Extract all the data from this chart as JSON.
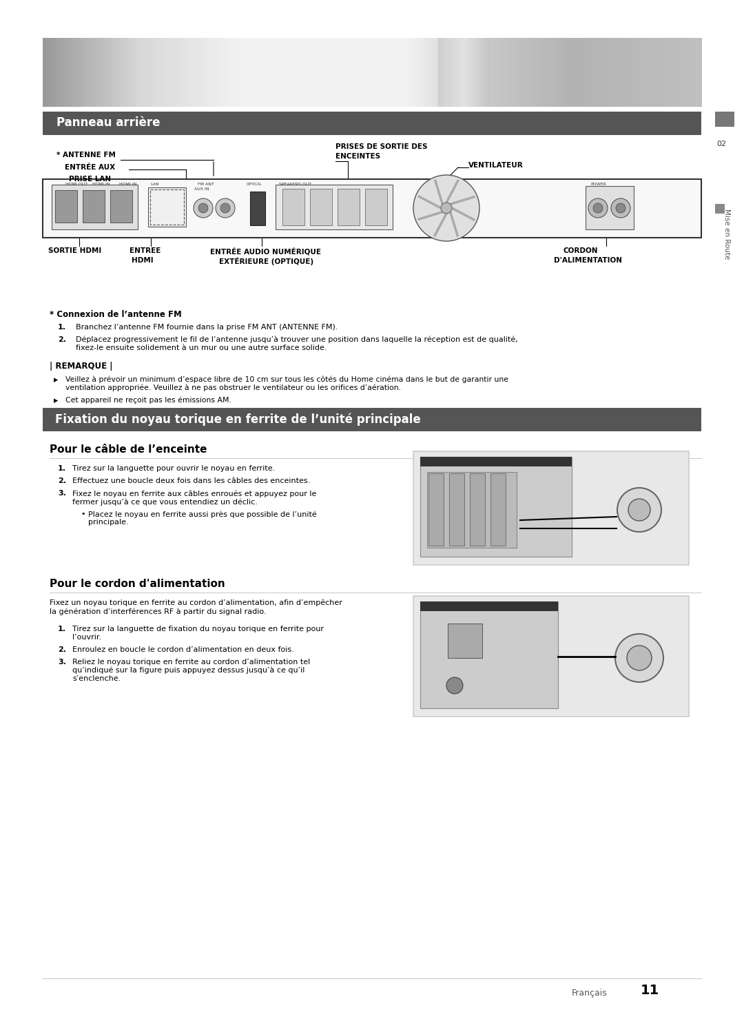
{
  "bg_color": "#ffffff",
  "section1_title": "Panneau arrière",
  "section1_bg": "#555555",
  "section2_title": "Fixation du noyau torique en ferrite de l’unité principale",
  "section2_bg": "#555555",
  "subsection1_title": "Pour le câble de l’enceinte",
  "subsection2_title": "Pour le cordon d'alimentation",
  "sidebar_num": "02",
  "sidebar_text": "Mise en Route",
  "page_num": "11",
  "page_lang": "Français",
  "connexion_title": "* Connexion de l’antenne FM",
  "connexion_items": [
    "Branchez l’antenne FM fournie dans la prise FM ANT (ANTENNE FM).",
    "Déplacez progressivement le fil de l’antenne jusqu’à trouver une position dans laquelle la réception est de qualité,\nfixez-le ensuite solidement à un mur ou une autre surface solide."
  ],
  "remarque_title": "| REMARQUE |",
  "remarque_items": [
    "Veillez à prévoir un minimum d’espace libre de 10 cm sur tous les côtés du Home cinéma dans le but de garantir une\nventilation appropriée. Veuillez à ne pas obstruer le ventilateur ou les orifices d’aération.",
    "Cet appareil ne reçoit pas les émissions AM."
  ],
  "enceinte_items": [
    "Tirez sur la languette pour ouvrir le noyau en ferrite.",
    "Effectuez une boucle deux fois dans les câbles des enceintes.",
    "Fixez le noyau en ferrite aux câbles enroués et appuyez pour le\nfermer jusqu’à ce que vous entendiez un déclic."
  ],
  "enceinte_bullet": "Placez le noyau en ferrite aussi près que possible de l’unité\nprincipale.",
  "alimentation_intro": "Fixez un noyau torique en ferrite au cordon d’alimentation, afin d’empêcher\nla génération d’interférences RF à partir du signal radio.",
  "alimentation_items": [
    "Tirez sur la languette de fixation du noyau torique en ferrite pour\nl’ouvrir.",
    "Enroulez en boucle le cordon d’alimentation en deux fois.",
    "Reliez le noyau torique en ferrite au cordon d’alimentation tel\nqu’indiqué sur la figure puis appuyez dessus jusqu’à ce qu’il\ns’enclenche."
  ]
}
